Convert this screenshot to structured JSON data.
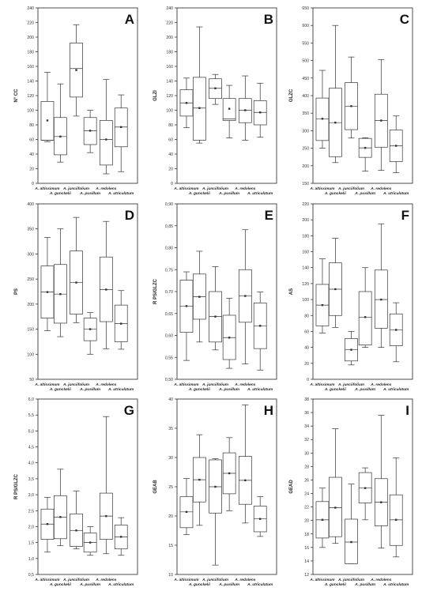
{
  "chart_data": [
    {
      "panel": "A",
      "type": "box",
      "ylabel": "N° CC",
      "ylim": [
        0,
        240
      ],
      "yticks": [
        "0",
        "20",
        "40",
        "60",
        "80",
        "100",
        "120",
        "140",
        "160",
        "180",
        "200",
        "220",
        "240"
      ],
      "categories": [
        "A. altissimum",
        "A. gunckelii",
        "A. junciifolium",
        "A. pusillum",
        "A. redolens",
        "A. utriculatum"
      ],
      "boxes": [
        {
          "min": 57,
          "q1": 59,
          "median": 59,
          "q3": 112,
          "max": 152,
          "mean": 86
        },
        {
          "min": 29,
          "q1": 39,
          "median": 64,
          "q3": 90,
          "max": 136,
          "mean": 64
        },
        {
          "min": 92,
          "q1": 118,
          "median": 157,
          "q3": 192,
          "max": 217,
          "mean": 155
        },
        {
          "min": 42,
          "q1": 53,
          "median": 72,
          "q3": 90,
          "max": 100,
          "mean": 72
        },
        {
          "min": 13,
          "q1": 25,
          "median": 60,
          "q3": 86,
          "max": 142,
          "mean": 60
        },
        {
          "min": 16,
          "q1": 50,
          "median": 77,
          "q3": 103,
          "max": 121,
          "mean": 77
        }
      ]
    },
    {
      "panel": "B",
      "type": "box",
      "ylabel": "GLZI",
      "ylim": [
        0,
        240
      ],
      "yticks": [
        "0",
        "20",
        "40",
        "60",
        "80",
        "100",
        "120",
        "140",
        "160",
        "180",
        "200",
        "220",
        "240"
      ],
      "categories": [
        "A. altissimum",
        "A. gunckelii",
        "A. junciifolium",
        "A. pusillum",
        "A. redolens",
        "A. utriculatum"
      ],
      "boxes": [
        {
          "min": 76,
          "q1": 92,
          "median": 110,
          "q3": 128,
          "max": 144,
          "mean": 110
        },
        {
          "min": 55,
          "q1": 59,
          "median": 103,
          "q3": 145,
          "max": 214,
          "mean": 103
        },
        {
          "min": 108,
          "q1": 116,
          "median": 130,
          "q3": 143,
          "max": 149,
          "mean": 130
        },
        {
          "min": 62,
          "q1": 86,
          "median": 88,
          "q3": 116,
          "max": 134,
          "mean": 102
        },
        {
          "min": 59,
          "q1": 83,
          "median": 100,
          "q3": 116,
          "max": 147,
          "mean": 100
        },
        {
          "min": 63,
          "q1": 80,
          "median": 97,
          "q3": 113,
          "max": 137,
          "mean": 97
        }
      ]
    },
    {
      "panel": "C",
      "type": "box",
      "ylabel": "GLZC",
      "ylim": [
        150,
        650
      ],
      "yticks": [
        "150",
        "200",
        "250",
        "300",
        "350",
        "400",
        "450",
        "500",
        "550",
        "600",
        "650"
      ],
      "categories": [
        "A. altissimum",
        "A. gunckelii",
        "A. junciifolium",
        "A. pusillum",
        "A. redolens",
        "A. utriculatum"
      ],
      "boxes": [
        {
          "min": 250,
          "q1": 272,
          "median": 334,
          "q3": 393,
          "max": 472,
          "mean": 334
        },
        {
          "min": 209,
          "q1": 226,
          "median": 323,
          "q3": 421,
          "max": 600,
          "mean": 323
        },
        {
          "min": 279,
          "q1": 303,
          "median": 370,
          "q3": 437,
          "max": 510,
          "mean": 370
        },
        {
          "min": 185,
          "q1": 224,
          "median": 251,
          "q3": 278,
          "max": 280,
          "mean": 251
        },
        {
          "min": 187,
          "q1": 253,
          "median": 329,
          "q3": 404,
          "max": 503,
          "mean": 329
        },
        {
          "min": 180,
          "q1": 212,
          "median": 257,
          "q3": 302,
          "max": 342,
          "mean": 257
        }
      ]
    },
    {
      "panel": "D",
      "type": "box",
      "ylabel": "PS",
      "ylim": [
        50,
        400
      ],
      "yticks": [
        "50",
        "100",
        "150",
        "200",
        "250",
        "300",
        "350",
        "400"
      ],
      "categories": [
        "A. altissimum",
        "A. gunckelii",
        "A. junciifolium",
        "A. pusillum",
        "A. redolens",
        "A. utriculatum"
      ],
      "boxes": [
        {
          "min": 147,
          "q1": 172,
          "median": 224,
          "q3": 276,
          "max": 333,
          "mean": 224
        },
        {
          "min": 135,
          "q1": 162,
          "median": 220,
          "q3": 279,
          "max": 350,
          "mean": 220
        },
        {
          "min": 163,
          "q1": 180,
          "median": 243,
          "q3": 306,
          "max": 373,
          "mean": 243
        },
        {
          "min": 100,
          "q1": 127,
          "median": 150,
          "q3": 172,
          "max": 183,
          "mean": 150
        },
        {
          "min": 111,
          "q1": 165,
          "median": 229,
          "q3": 294,
          "max": 365,
          "mean": 229
        },
        {
          "min": 110,
          "q1": 125,
          "median": 161,
          "q3": 198,
          "max": 227,
          "mean": 161
        }
      ]
    },
    {
      "panel": "E",
      "type": "box",
      "ylabel": "R PS/GLZC",
      "ylim": [
        0.5,
        0.9
      ],
      "yticks": [
        "0,50",
        "0,55",
        "0,60",
        "0,65",
        "0,70",
        "0,75",
        "0,80",
        "0,85",
        "0,90"
      ],
      "categories": [
        "A. altissimum",
        "A. gunckelii",
        "A. junciifolium",
        "A. pusillum",
        "A. redolens",
        "A. utriculatum"
      ],
      "boxes": [
        {
          "min": 0.543,
          "q1": 0.607,
          "median": 0.667,
          "q3": 0.726,
          "max": 0.745,
          "mean": 0.667
        },
        {
          "min": 0.585,
          "q1": 0.637,
          "median": 0.688,
          "q3": 0.74,
          "max": 0.792,
          "mean": 0.688
        },
        {
          "min": 0.567,
          "q1": 0.585,
          "median": 0.643,
          "q3": 0.7,
          "max": 0.757,
          "mean": 0.643
        },
        {
          "min": 0.525,
          "q1": 0.545,
          "median": 0.595,
          "q3": 0.646,
          "max": 0.685,
          "mean": 0.595
        },
        {
          "min": 0.535,
          "q1": 0.63,
          "median": 0.69,
          "q3": 0.75,
          "max": 0.841,
          "mean": 0.69
        },
        {
          "min": 0.521,
          "q1": 0.57,
          "median": 0.622,
          "q3": 0.674,
          "max": 0.699,
          "mean": 0.622
        }
      ]
    },
    {
      "panel": "F",
      "type": "box",
      "ylabel": "AS",
      "ylim": [
        0,
        220
      ],
      "yticks": [
        "0",
        "20",
        "40",
        "60",
        "80",
        "100",
        "120",
        "140",
        "160",
        "180",
        "200",
        "220"
      ],
      "categories": [
        "A. altissimum",
        "A. gunckelii",
        "A. junciifolium",
        "A. pusillum",
        "A. redolens",
        "A. utriculatum"
      ],
      "boxes": [
        {
          "min": 58,
          "q1": 67,
          "median": 93,
          "q3": 119,
          "max": 151,
          "mean": 93
        },
        {
          "min": 65,
          "q1": 80,
          "median": 113,
          "q3": 146,
          "max": 177,
          "mean": 113
        },
        {
          "min": 18,
          "q1": 23,
          "median": 37,
          "q3": 51,
          "max": 60,
          "mean": 37
        },
        {
          "min": 40,
          "q1": 43,
          "median": 78,
          "q3": 110,
          "max": 140,
          "mean": 78
        },
        {
          "min": 40,
          "q1": 64,
          "median": 100,
          "q3": 137,
          "max": 195,
          "mean": 100
        },
        {
          "min": 22,
          "q1": 42,
          "median": 62,
          "q3": 82,
          "max": 96,
          "mean": 62
        }
      ]
    },
    {
      "panel": "G",
      "type": "box",
      "ylabel": "R PS/GLZC",
      "ylim": [
        0.5,
        6.0
      ],
      "yticks": [
        "0,5",
        "1,0",
        "1,5",
        "2,0",
        "2,5",
        "3,0",
        "3,5",
        "4,0",
        "4,5",
        "5,0",
        "5,5",
        "6,0"
      ],
      "categories": [
        "A. altissimum",
        "A. gunckelii",
        "A. junciifolium",
        "A. pusillum",
        "A. redolens",
        "A. utriculatum"
      ],
      "boxes": [
        {
          "min": 1.2,
          "q1": 1.6,
          "median": 2.08,
          "q3": 2.55,
          "max": 2.92,
          "mean": 2.08
        },
        {
          "min": 1.4,
          "q1": 1.62,
          "median": 2.3,
          "q3": 2.97,
          "max": 3.8,
          "mean": 2.3
        },
        {
          "min": 1.3,
          "q1": 1.38,
          "median": 1.88,
          "q3": 2.4,
          "max": 3.12,
          "mean": 1.88
        },
        {
          "min": 1.1,
          "q1": 1.2,
          "median": 1.5,
          "q3": 1.8,
          "max": 2.0,
          "mean": 1.5
        },
        {
          "min": 1.15,
          "q1": 1.6,
          "median": 2.33,
          "q3": 3.05,
          "max": 5.45,
          "mean": 2.33
        },
        {
          "min": 1.1,
          "q1": 1.3,
          "median": 1.68,
          "q3": 2.05,
          "max": 2.28,
          "mean": 1.68
        }
      ]
    },
    {
      "panel": "H",
      "type": "box",
      "ylabel": "GEAB",
      "ylim": [
        10,
        40
      ],
      "yticks": [
        "10",
        "15",
        "20",
        "25",
        "30",
        "35",
        "40"
      ],
      "categories": [
        "A. altissimum",
        "A. gunckelii",
        "A. junciifolium",
        "A. pusillum",
        "A. redolens",
        "A. utriculatum"
      ],
      "boxes": [
        {
          "min": 16.8,
          "q1": 18.0,
          "median": 20.7,
          "q3": 23.3,
          "max": 26.4,
          "mean": 20.7
        },
        {
          "min": 18.4,
          "q1": 22.4,
          "median": 26.2,
          "q3": 30.0,
          "max": 33.9,
          "mean": 26.2
        },
        {
          "min": 11.6,
          "q1": 20.5,
          "median": 25.0,
          "q3": 29.6,
          "max": 29.8,
          "mean": 25.0
        },
        {
          "min": 20.9,
          "q1": 23.8,
          "median": 27.3,
          "q3": 30.8,
          "max": 33.4,
          "mean": 27.3
        },
        {
          "min": 18.8,
          "q1": 22.0,
          "median": 26.1,
          "q3": 30.2,
          "max": 39.0,
          "mean": 26.1
        },
        {
          "min": 16.5,
          "q1": 17.3,
          "median": 19.5,
          "q3": 21.7,
          "max": 23.3,
          "mean": 19.5
        }
      ]
    },
    {
      "panel": "I",
      "type": "box",
      "ylabel": "GEAD",
      "ylim": [
        12,
        38
      ],
      "yticks": [
        "12",
        "14",
        "16",
        "18",
        "20",
        "22",
        "24",
        "26",
        "28",
        "30",
        "32",
        "34",
        "36",
        "38"
      ],
      "categories": [
        "A. altissimum",
        "A. gunckelii",
        "A. junciifolium",
        "A. pusillum",
        "A. redolens",
        "A. utriculatum"
      ],
      "boxes": [
        {
          "min": 16.0,
          "q1": 17.4,
          "median": 20.1,
          "q3": 22.8,
          "max": 24.8,
          "mean": 20.1
        },
        {
          "min": 16.6,
          "q1": 17.6,
          "median": 21.9,
          "q3": 26.4,
          "max": 33.6,
          "mean": 21.9
        },
        {
          "min": 13.6,
          "q1": 13.6,
          "median": 16.8,
          "q3": 20.2,
          "max": 25.4,
          "mean": 16.8
        },
        {
          "min": 20.1,
          "q1": 22.6,
          "median": 24.8,
          "q3": 27.1,
          "max": 27.8,
          "mean": 24.8
        },
        {
          "min": 15.9,
          "q1": 19.2,
          "median": 22.7,
          "q3": 26.2,
          "max": 35.6,
          "mean": 22.7
        },
        {
          "min": 14.6,
          "q1": 16.3,
          "median": 20.1,
          "q3": 23.8,
          "max": 29.3,
          "mean": 20.1
        }
      ]
    }
  ]
}
